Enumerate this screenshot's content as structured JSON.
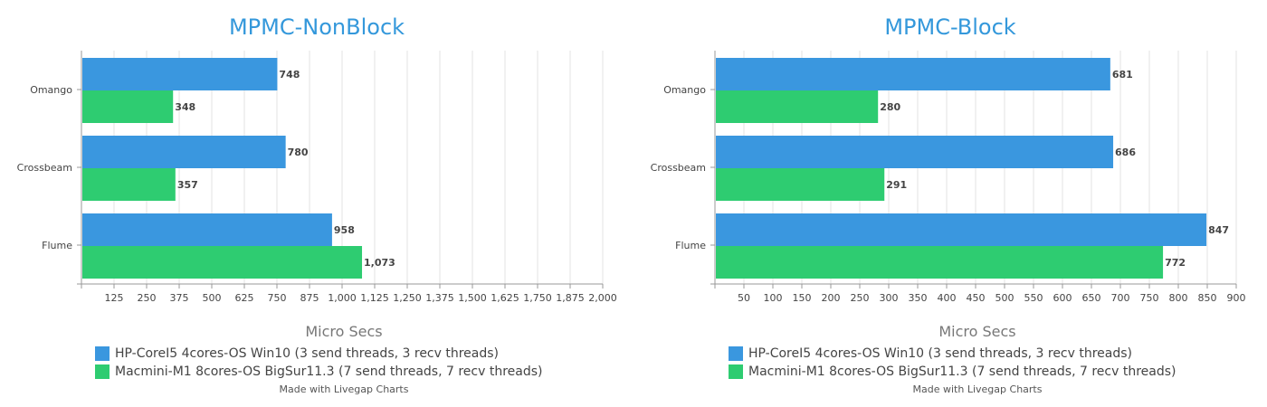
{
  "charts": [
    {
      "xlabel": "Micro Secs",
      "credit": "Made with Livegap Charts"
    },
    {
      "xlabel": "Micro Secs",
      "credit": "Made with Livegap Charts"
    }
  ],
  "legend": [
    {
      "label": "HP-CoreI5 4cores-OS Win10 (3 send threads, 3 recv threads)",
      "color": "#3a97df"
    },
    {
      "label": "Macmini-M1 8cores-OS BigSur11.3 (7 send threads, 7 recv threads)",
      "color": "#2ecc71"
    }
  ],
  "chart_data": [
    {
      "type": "bar",
      "orientation": "horizontal",
      "title": "MPMC-NonBlock",
      "xlabel": "Micro Secs",
      "categories": [
        "Omango",
        "Crossbeam",
        "Flume"
      ],
      "series": [
        {
          "name": "HP-CoreI5 4cores-OS Win10 (3 send threads, 3 recv threads)",
          "values": [
            748,
            780,
            958
          ],
          "color": "#3a97df",
          "labels": [
            "748",
            "780",
            "958"
          ]
        },
        {
          "name": "Macmini-M1 8cores-OS BigSur11.3 (7 send threads, 7 recv threads)",
          "values": [
            348,
            357,
            1073
          ],
          "color": "#2ecc71",
          "labels": [
            "348",
            "357",
            "1,073"
          ]
        }
      ],
      "xlim": [
        0,
        2000
      ],
      "ticks": [
        125,
        250,
        375,
        500,
        625,
        750,
        875,
        1000,
        1125,
        1250,
        1375,
        1500,
        1625,
        1750,
        1875,
        2000
      ],
      "tick_labels": [
        "125",
        "250",
        "375",
        "500",
        "625",
        "750",
        "875",
        "1,000",
        "1,125",
        "1,250",
        "1,375",
        "1,500",
        "1,625",
        "1,750",
        "1,875",
        "2,000"
      ],
      "grid": true,
      "legend_position": "bottom"
    },
    {
      "type": "bar",
      "orientation": "horizontal",
      "title": "MPMC-Block",
      "xlabel": "Micro Secs",
      "categories": [
        "Omango",
        "Crossbeam",
        "Flume"
      ],
      "series": [
        {
          "name": "HP-CoreI5 4cores-OS Win10 (3 send threads, 3 recv threads)",
          "values": [
            681,
            686,
            847
          ],
          "color": "#3a97df",
          "labels": [
            "681",
            "686",
            "847"
          ]
        },
        {
          "name": "Macmini-M1 8cores-OS BigSur11.3 (7 send threads, 7 recv threads)",
          "values": [
            280,
            291,
            772
          ],
          "color": "#2ecc71",
          "labels": [
            "280",
            "291",
            "772"
          ]
        }
      ],
      "xlim": [
        0,
        900
      ],
      "ticks": [
        50,
        100,
        150,
        200,
        250,
        300,
        350,
        400,
        450,
        500,
        550,
        600,
        650,
        700,
        750,
        800,
        850,
        900
      ],
      "tick_labels": [
        "50",
        "100",
        "150",
        "200",
        "250",
        "300",
        "350",
        "400",
        "450",
        "500",
        "550",
        "600",
        "650",
        "700",
        "750",
        "800",
        "850",
        "900"
      ],
      "grid": true,
      "legend_position": "bottom"
    }
  ]
}
